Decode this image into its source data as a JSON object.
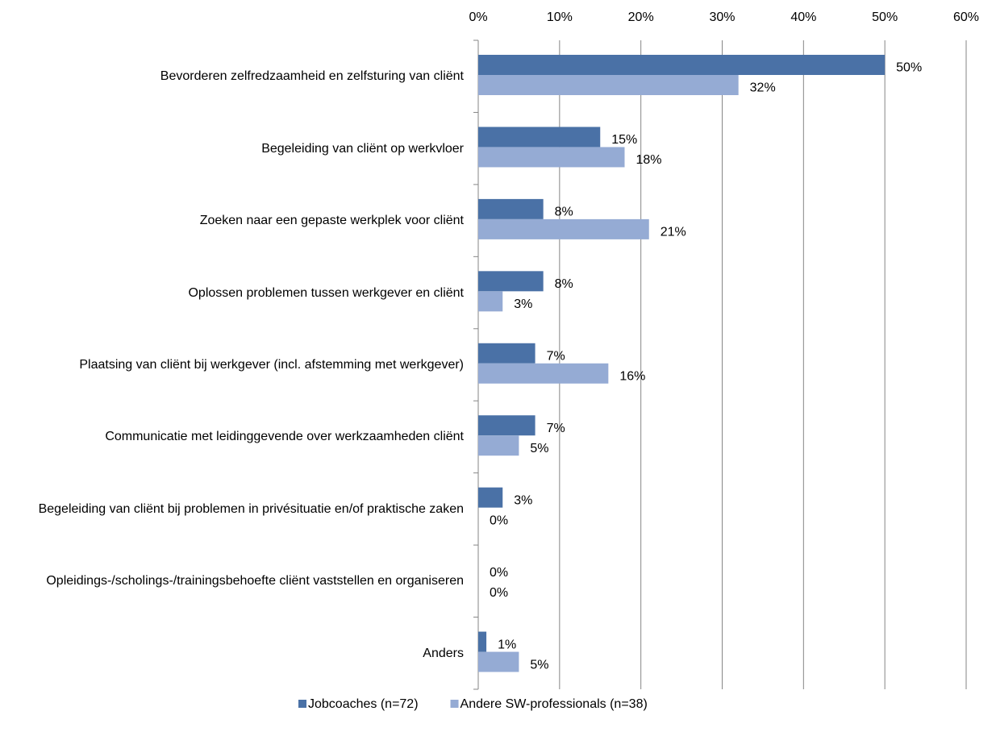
{
  "chart_data": {
    "type": "hbar",
    "categories": [
      "Bevorderen zelfredzaamheid en zelfsturing van cliënt",
      "Begeleiding van cliënt op werkvloer",
      "Zoeken naar een gepaste werkplek voor cliënt",
      "Oplossen problemen tussen werkgever en cliënt",
      "Plaatsing van cliënt bij werkgever (incl. afstemming met werkgever)",
      "Communicatie met leidinggevende over werkzaamheden cliënt",
      "Begeleiding van cliënt bij problemen in privésituatie en/of praktische zaken",
      "Opleidings-/scholings-/trainingsbehoefte cliënt vaststellen en organiseren",
      "Anders"
    ],
    "series": [
      {
        "name": "Jobcoaches (n=72)",
        "color": "#4a71a6",
        "values": [
          50,
          15,
          8,
          8,
          7,
          7,
          3,
          0,
          1
        ],
        "value_labels": [
          "50%",
          "15%",
          "8%",
          "8%",
          "7%",
          "7%",
          "3%",
          "0%",
          "1%"
        ]
      },
      {
        "name": "Andere SW-professionals (n=38)",
        "color": "#95abd4",
        "values": [
          32,
          18,
          21,
          3,
          16,
          5,
          0,
          0,
          5
        ],
        "value_labels": [
          "32%",
          "18%",
          "21%",
          "3%",
          "16%",
          "5%",
          "0%",
          "0%",
          "5%"
        ]
      }
    ],
    "xlim": [
      0,
      60
    ],
    "xticks": [
      {
        "value": 0,
        "label": "0%"
      },
      {
        "value": 10,
        "label": "10%"
      },
      {
        "value": 20,
        "label": "20%"
      },
      {
        "value": 30,
        "label": "30%"
      },
      {
        "value": 40,
        "label": "40%"
      },
      {
        "value": 50,
        "label": "50%"
      },
      {
        "value": 60,
        "label": "60%"
      }
    ],
    "grid": true,
    "legend": "bottom"
  }
}
